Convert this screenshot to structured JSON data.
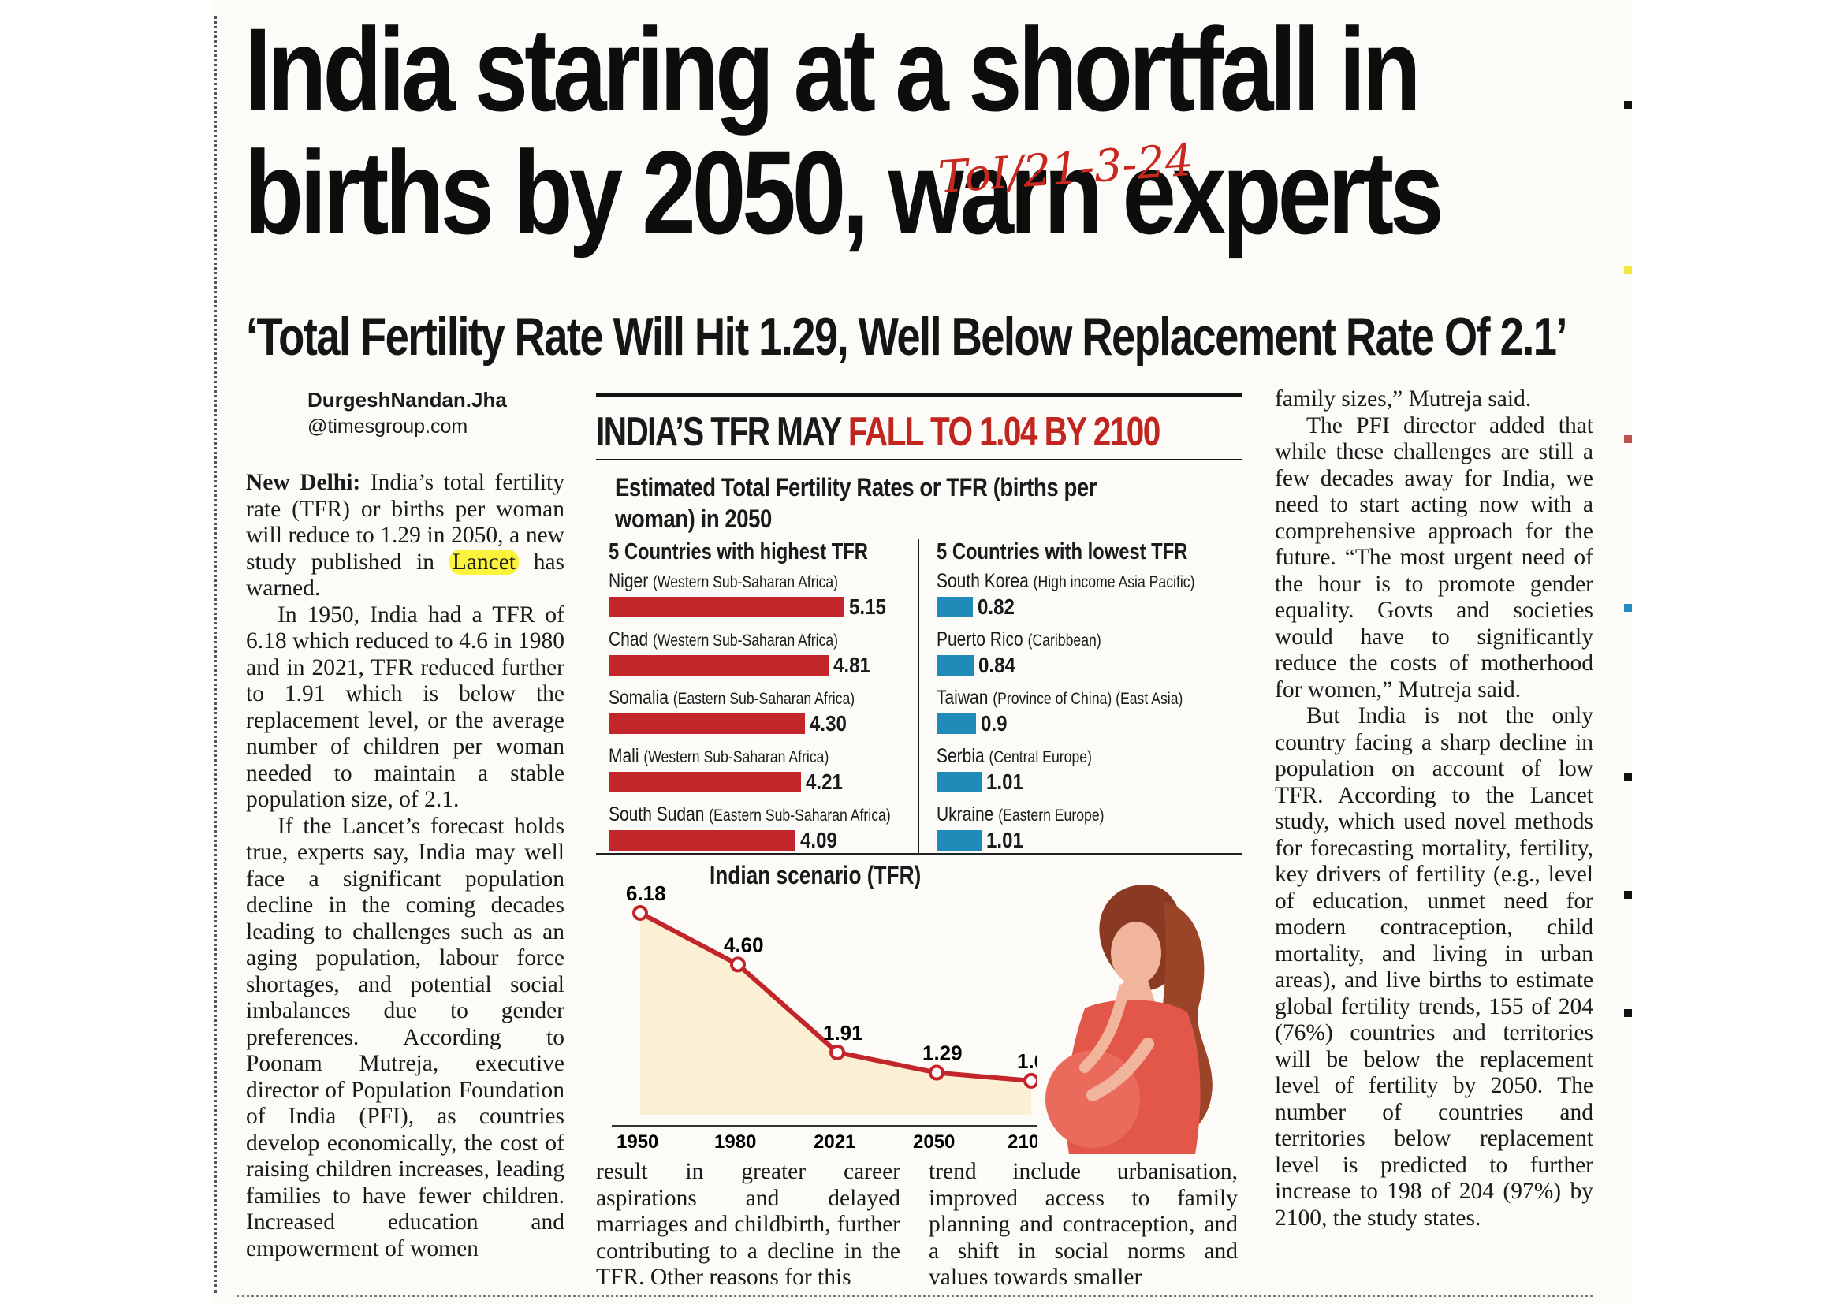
{
  "headline": {
    "line1": "India staring at a shortfall in",
    "line2": "births by 2050, warn experts"
  },
  "handwritten_note": "ToI/21-3-24",
  "subheadline": "‘Total Fertility Rate Will Hit 1.29, Well Below Replacement Rate Of 2.1’",
  "byline": {
    "name": "DurgeshNandan.Jha",
    "email": "@timesgroup.com"
  },
  "article": {
    "dateline": "New Delhi:",
    "p1_a": "India’s total fertility rate (TFR) or births per woman will reduce to 1.29 in 2050, a new study published in",
    "p1_highlight": "Lancet",
    "p1_b": "has warned.",
    "p2": "In 1950, India had a TFR of 6.18 which reduced to 4.6 in 1980 and in 2021, TFR reduced further to 1.91 which is below the replacement level, or the average number of children per woman needed to maintain a stable population size, of 2.1.",
    "p3": "If the Lancet’s forecast holds true, experts say, India may well face a significant population decline in the coming decades leading to challenges such as an aging population, labour force shortages, and potential social imbalances due to gender preferences. According to Poonam Mutreja, executive director of Population Foundation of India (PFI), as countries develop economically, the cost of raising children increases, leading families to have fewer children. Increased education and empowerment of women",
    "col2": "result in greater career aspirations and delayed marriages and childbirth, further contributing to a decline in the TFR. Other reasons for this",
    "col3": "trend include urbanisation, improved access to family planning and contraception, and a shift in social norms and values towards smaller",
    "col4_p1": "family sizes,” Mutreja said.",
    "col4_p2": "The PFI director added that while these challenges are still a few decades away for India, we need to start acting now with a comprehensive approach for the future. “The most urgent need of the hour is to promote gender equality. Govts and societies would have to significantly reduce the costs of motherhood for women,” Mutreja said.",
    "col4_p3": "But India is not the only country facing a sharp decline in population on account of low TFR. According to the Lancet study, which used novel methods for forecasting mortality, fertility, key drivers of fertility (e.g., level of education, unmet need for modern contraception, child mortality, and living in urban areas), and live births to estimate global fertility trends, 155 of 204 (76%) countries and territories will be below the replacement level of fertility by 2050. The number of countries and territories below replacement level is predicted to further increase to 198 of 204 (97%) by 2100, the study states."
  },
  "infographic": {
    "title_black": "INDIA’S TFR MAY",
    "title_red": "FALL TO 1.04 BY 2100",
    "estimated_title": "Estimated Total Fertility Rates or TFR (births per woman) in 2050",
    "colors": {
      "highest": "#c3262a",
      "lowest": "#1f8bb8",
      "title_red": "#c0251f",
      "line": "#c3262a"
    },
    "highest": {
      "heading": "5 Countries with highest TFR",
      "items": [
        {
          "country": "Niger",
          "region": "(Western Sub-Saharan Africa)",
          "value": 5.15,
          "label": "5.15"
        },
        {
          "country": "Chad",
          "region": "(Western Sub-Saharan Africa)",
          "value": 4.81,
          "label": "4.81"
        },
        {
          "country": "Somalia",
          "region": "(Eastern Sub-Saharan Africa)",
          "value": 4.3,
          "label": "4.30"
        },
        {
          "country": "Mali",
          "region": "(Western Sub-Saharan Africa)",
          "value": 4.21,
          "label": "4.21"
        },
        {
          "country": "South Sudan",
          "region": "(Eastern Sub-Saharan Africa)",
          "value": 4.09,
          "label": "4.09"
        }
      ]
    },
    "lowest": {
      "heading": "5 Countries with lowest TFR",
      "items": [
        {
          "country": "South Korea",
          "region": "(High income Asia Pacific)",
          "value": 0.82,
          "label": "0.82"
        },
        {
          "country": "Puerto Rico",
          "region": "(Caribbean)",
          "value": 0.84,
          "label": "0.84"
        },
        {
          "country": "Taiwan",
          "region": "(Province of China) (East Asia)",
          "value": 0.9,
          "label": "0.9"
        },
        {
          "country": "Serbia",
          "region": "(Central Europe)",
          "value": 1.01,
          "label": "1.01"
        },
        {
          "country": "Ukraine",
          "region": "(Eastern Europe)",
          "value": 1.01,
          "label": "1.01"
        }
      ]
    }
  },
  "chart_data": {
    "type": "line",
    "title": "Indian scenario (TFR)",
    "x": [
      "1950",
      "1980",
      "2021",
      "2050",
      "2100"
    ],
    "values": [
      6.18,
      4.6,
      1.91,
      1.29,
      1.04
    ],
    "labels": [
      "6.18",
      "4.60",
      "1.91",
      "1.29",
      "1.04"
    ],
    "xlabel": "",
    "ylabel": "",
    "ylim": [
      0,
      7
    ],
    "grid": false,
    "area_fill": true
  }
}
